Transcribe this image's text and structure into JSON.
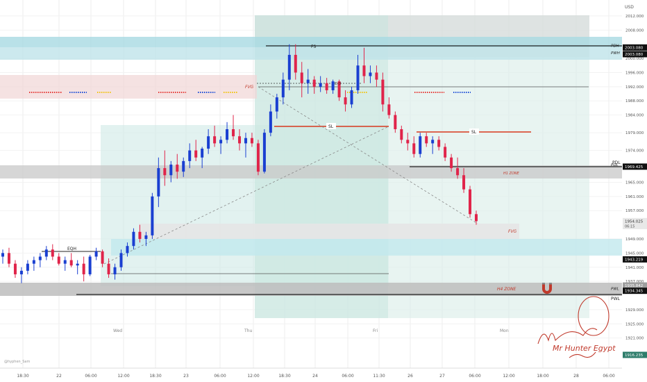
{
  "chart_data": {
    "type": "candlestick",
    "currency": "USD",
    "timeframe_labels": [
      "18:30",
      "22",
      "06:00",
      "12:00",
      "18:30",
      "23",
      "06:00",
      "12:00",
      "18:30",
      "24",
      "06:00",
      "11:30",
      "26",
      "27",
      "06:00",
      "12:00",
      "18:00",
      "28",
      "06:00"
    ],
    "day_labels": [
      "Wed",
      "Thu",
      "Fri",
      "Mon"
    ],
    "y_ticks": [
      2012.0,
      2008.0,
      2000.0,
      1996.0,
      1992.0,
      1988.0,
      1984.0,
      1979.0,
      1974.0,
      1965.0,
      1961.0,
      1957.0,
      1949.0,
      1945.0,
      1941.0,
      1937.0,
      1929.0,
      1925.0,
      1921.0
    ],
    "ylim": [
      1912.5,
      2016.5
    ],
    "price_tags": [
      {
        "label": "PDH",
        "value": "2003.080",
        "price": 2003.08,
        "dark": true
      },
      {
        "label": "",
        "value": "2003.080",
        "price": 2001.2,
        "dark": true
      },
      {
        "label": "PWH",
        "value": "",
        "price": 2001.0,
        "dark": false
      },
      {
        "label": "PDL",
        "value": "1969.425",
        "price": 1969.425,
        "dark": true
      },
      {
        "label": "",
        "value": "1954.025",
        "price": 1954.025,
        "dark": false,
        "sub": "06:15"
      },
      {
        "label": "",
        "value": "1943.219",
        "price": 1943.219,
        "dark": true
      },
      {
        "label": "",
        "value": "1935.842",
        "price": 1935.842,
        "dark": false,
        "grey": true
      },
      {
        "label": "PWL",
        "value": "1934.345",
        "price": 1934.345,
        "dark": true
      },
      {
        "label": "",
        "value": "1916.235",
        "price": 1916.235,
        "dark": false,
        "green": true
      }
    ],
    "annotations": {
      "fvg_top": "FVG",
      "fvg_bottom": "FVG",
      "fs": "FS",
      "sl1": "SL",
      "sl2": "SL",
      "pd": "D.O",
      "eqh": "EQH",
      "h1_zone": "H1 ZONE",
      "h4_zone": "H4 ZONE",
      "pdl": "PDL",
      "pwl": "PWL"
    },
    "watermark": "@hyphen_Sam",
    "signature": "Mr Hunter Egypt",
    "candles": [
      [
        1944.0,
        1946.0,
        1942.0,
        1945.0
      ],
      [
        1945.0,
        1946.5,
        1941.0,
        1942.0
      ],
      [
        1942.0,
        1943.0,
        1938.0,
        1939.0
      ],
      [
        1939.0,
        1941.0,
        1936.5,
        1940.0
      ],
      [
        1940.0,
        1943.0,
        1939.0,
        1942.0
      ],
      [
        1942.0,
        1944.0,
        1940.0,
        1943.0
      ],
      [
        1943.0,
        1945.0,
        1941.0,
        1944.0
      ],
      [
        1944.0,
        1947.0,
        1943.0,
        1946.0
      ],
      [
        1946.0,
        1947.5,
        1943.0,
        1944.0
      ],
      [
        1944.0,
        1945.0,
        1941.5,
        1942.0
      ],
      [
        1942.0,
        1944.0,
        1940.0,
        1943.0
      ],
      [
        1943.0,
        1945.0,
        1941.0,
        1941.5
      ],
      [
        1941.5,
        1943.0,
        1939.0,
        1942.0
      ],
      [
        1942.0,
        1944.0,
        1937.0,
        1939.0
      ],
      [
        1939.0,
        1944.5,
        1938.5,
        1944.0
      ],
      [
        1944.0,
        1946.5,
        1943.0,
        1945.5
      ],
      [
        1945.5,
        1946.0,
        1941.0,
        1942.0
      ],
      [
        1942.0,
        1943.5,
        1938.0,
        1939.0
      ],
      [
        1939.0,
        1942.0,
        1937.5,
        1941.0
      ],
      [
        1941.0,
        1946.0,
        1940.0,
        1945.0
      ],
      [
        1945.0,
        1948.0,
        1944.0,
        1947.0
      ],
      [
        1947.0,
        1952.0,
        1946.0,
        1951.0
      ],
      [
        1951.0,
        1953.0,
        1948.0,
        1949.0
      ],
      [
        1949.0,
        1951.0,
        1947.0,
        1950.0
      ],
      [
        1950.0,
        1962.0,
        1949.0,
        1961.0
      ],
      [
        1961.0,
        1972.0,
        1958.0,
        1969.0
      ],
      [
        1969.0,
        1974.0,
        1964.0,
        1967.0
      ],
      [
        1967.0,
        1971.0,
        1965.0,
        1970.0
      ],
      [
        1970.0,
        1973.0,
        1966.0,
        1968.0
      ],
      [
        1968.0,
        1972.0,
        1966.5,
        1971.0
      ],
      [
        1971.0,
        1976.0,
        1969.0,
        1974.0
      ],
      [
        1974.0,
        1977.0,
        1971.0,
        1972.0
      ],
      [
        1972.0,
        1975.0,
        1969.0,
        1974.5
      ],
      [
        1974.5,
        1980.0,
        1973.0,
        1978.0
      ],
      [
        1978.0,
        1981.0,
        1975.0,
        1976.0
      ],
      [
        1976.0,
        1978.0,
        1973.0,
        1977.0
      ],
      [
        1977.0,
        1982.0,
        1976.0,
        1980.0
      ],
      [
        1980.0,
        1984.0,
        1977.0,
        1978.0
      ],
      [
        1978.0,
        1980.0,
        1974.0,
        1976.0
      ],
      [
        1976.0,
        1979.0,
        1972.0,
        1977.5
      ],
      [
        1977.5,
        1979.0,
        1975.0,
        1976.0
      ],
      [
        1976.0,
        1977.0,
        1967.0,
        1968.0
      ],
      [
        1968.0,
        1980.0,
        1967.5,
        1979.0
      ],
      [
        1979.0,
        1987.0,
        1978.0,
        1985.0
      ],
      [
        1985.0,
        1990.0,
        1983.0,
        1989.0
      ],
      [
        1989.0,
        1996.0,
        1987.0,
        1994.0
      ],
      [
        1994.0,
        2004.0,
        1991.0,
        2001.0
      ],
      [
        2001.0,
        2004.0,
        1994.0,
        1996.0
      ],
      [
        1996.0,
        1999.0,
        1989.0,
        1993.0
      ],
      [
        1993.0,
        1997.0,
        1990.0,
        1994.0
      ],
      [
        1994.0,
        1995.0,
        1990.0,
        1992.0
      ],
      [
        1992.0,
        1995.0,
        1990.5,
        1993.0
      ],
      [
        1993.0,
        1994.5,
        1990.0,
        1991.0
      ],
      [
        1991.0,
        1994.0,
        1990.0,
        1993.5
      ],
      [
        1993.5,
        1994.0,
        1988.0,
        1989.0
      ],
      [
        1989.0,
        1991.0,
        1985.0,
        1987.0
      ],
      [
        1987.0,
        1992.0,
        1986.0,
        1991.0
      ],
      [
        1991.0,
        2001.0,
        1990.0,
        1998.0
      ],
      [
        1998.0,
        2003.0,
        1993.0,
        1995.0
      ],
      [
        1995.0,
        1998.0,
        1993.0,
        1996.0
      ],
      [
        1996.0,
        1998.0,
        1992.0,
        1994.0
      ],
      [
        1994.0,
        1996.0,
        1985.0,
        1987.0
      ],
      [
        1987.0,
        1989.0,
        1983.0,
        1984.0
      ],
      [
        1984.0,
        1985.0,
        1979.0,
        1980.0
      ],
      [
        1980.0,
        1981.0,
        1976.0,
        1977.0
      ],
      [
        1977.0,
        1979.0,
        1974.0,
        1976.0
      ],
      [
        1976.0,
        1978.0,
        1972.0,
        1973.0
      ],
      [
        1973.0,
        1979.0,
        1972.0,
        1978.0
      ],
      [
        1978.0,
        1979.0,
        1975.0,
        1976.0
      ],
      [
        1976.0,
        1978.0,
        1973.0,
        1977.0
      ],
      [
        1977.0,
        1978.0,
        1974.0,
        1975.0
      ],
      [
        1975.0,
        1976.0,
        1971.0,
        1972.0
      ],
      [
        1972.0,
        1973.0,
        1968.0,
        1969.0
      ],
      [
        1969.0,
        1972.0,
        1966.0,
        1967.0
      ],
      [
        1967.0,
        1969.0,
        1962.0,
        1963.0
      ],
      [
        1963.0,
        1964.0,
        1955.0,
        1956.0
      ],
      [
        1956.0,
        1957.0,
        1953.0,
        1954.025
      ]
    ]
  }
}
